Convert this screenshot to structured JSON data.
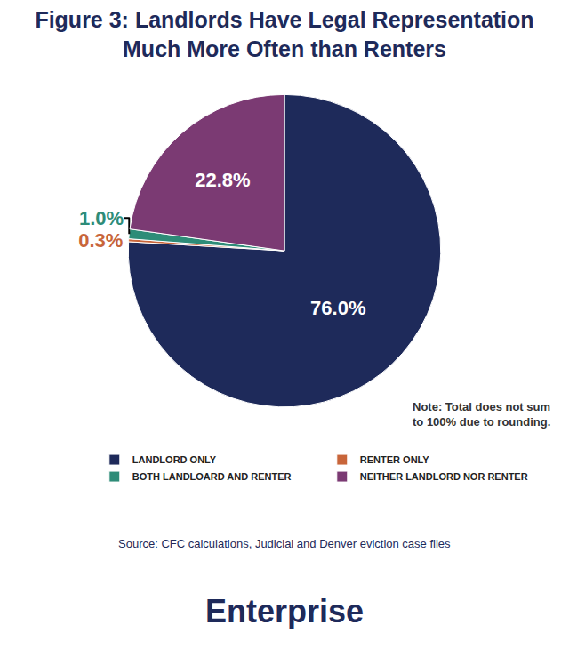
{
  "chart_data": {
    "type": "pie",
    "title": "Figure 3: Landlords Have Legal Representation Much More Often than Renters",
    "categories": [
      "LANDLORD ONLY",
      "RENTER ONLY",
      "BOTH LANDLOARD AND RENTER",
      "NEITHER LANDLORD NOR RENTER"
    ],
    "values": [
      76.0,
      0.3,
      1.0,
      22.8
    ],
    "value_labels": [
      "76.0%",
      "0.3%",
      "1.0%",
      "22.8%"
    ],
    "colors": [
      "#1e2a5a",
      "#c8653a",
      "#2e8c78",
      "#7b3a73"
    ],
    "data_labels": true,
    "legend": "bottom",
    "note": [
      "Note: Total does not sum",
      "to 100% due to rounding."
    ],
    "source": "Source: CFC calculations, Judicial and Denver eviction case files",
    "logo": "Enterprise"
  }
}
